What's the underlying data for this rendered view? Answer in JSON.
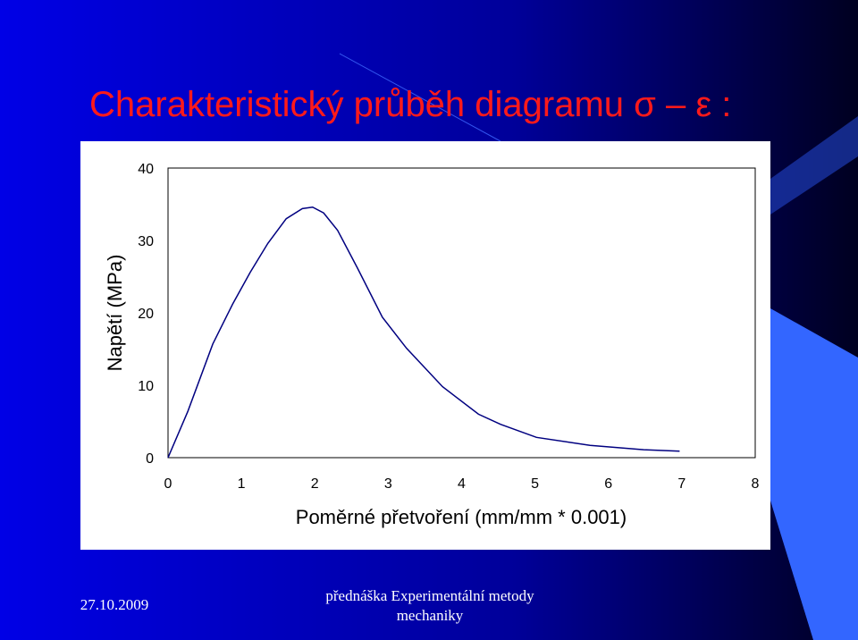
{
  "title": "Charakteristický průběh diagramu σ – ε :",
  "chart_data": {
    "type": "line",
    "x_label": "Poměrné přetvoření (mm/mm * 0.001)",
    "y_label": "Napětí (MPa)",
    "x": [
      0,
      0.27,
      0.61,
      0.88,
      1.12,
      1.36,
      1.61,
      1.83,
      1.97,
      2.12,
      2.31,
      2.58,
      2.92,
      3.25,
      3.74,
      4.23,
      4.53,
      5.02,
      5.75,
      6.48,
      6.97
    ],
    "series": [
      {
        "color": "#000080",
        "values": [
          0,
          6.4,
          15.7,
          21.2,
          25.6,
          29.6,
          33.0,
          34.4,
          34.6,
          33.8,
          31.4,
          26.2,
          19.4,
          15.1,
          9.8,
          6.0,
          4.6,
          2.8,
          1.7,
          1.1,
          0.9
        ]
      }
    ],
    "xlim": [
      0,
      8
    ],
    "xticks": [
      0,
      1,
      2,
      3,
      4,
      5,
      6,
      7,
      8
    ],
    "ylim": [
      0,
      40
    ],
    "yticks": [
      0,
      10,
      20,
      30,
      40
    ],
    "grid": false
  },
  "footer": {
    "date": "27.10.2009",
    "lines": [
      "přednáška Experimentální metody",
      "mechaniky"
    ]
  }
}
